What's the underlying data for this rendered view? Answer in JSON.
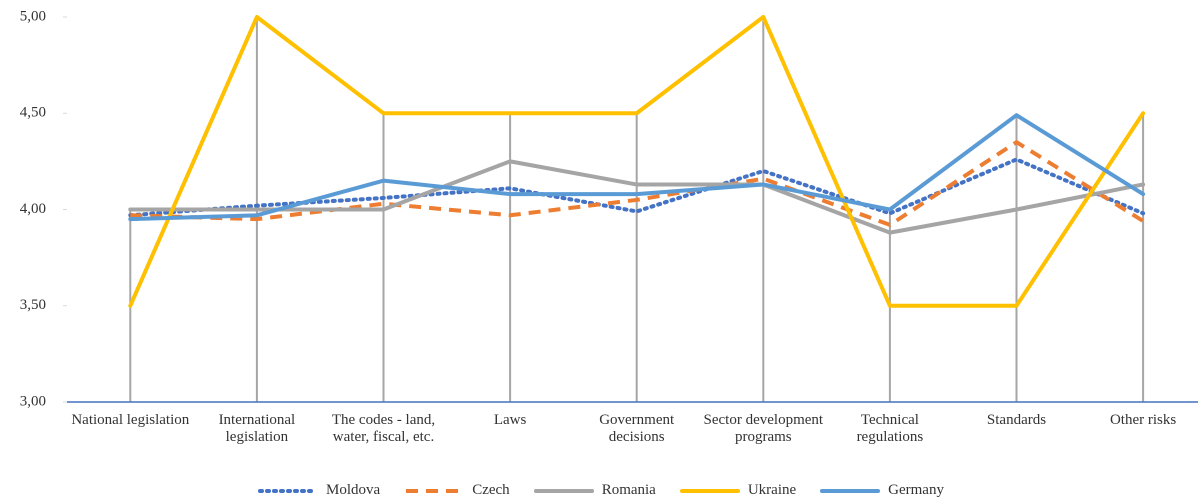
{
  "chart_data": {
    "type": "line",
    "categories": [
      "National legislation",
      "International legislation",
      "The codes - land, water, fiscal, etc.",
      "Laws",
      "Government decisions",
      "Sector development programs",
      "Technical regulations",
      "Standards",
      "Other risks"
    ],
    "series": [
      {
        "name": "Moldova",
        "color": "#4472c4",
        "dash": "dot",
        "values": [
          3.97,
          4.02,
          4.06,
          4.11,
          3.99,
          4.2,
          3.98,
          4.26,
          3.98
        ]
      },
      {
        "name": "Czech",
        "color": "#ed7d31",
        "dash": "dash",
        "values": [
          3.97,
          3.95,
          4.03,
          3.97,
          4.05,
          4.16,
          3.92,
          4.35,
          3.94
        ]
      },
      {
        "name": "Romania",
        "color": "#a5a5a5",
        "dash": "solid",
        "values": [
          4.0,
          4.0,
          4.0,
          4.25,
          4.13,
          4.13,
          3.88,
          4.0,
          4.13
        ]
      },
      {
        "name": "Ukraine",
        "color": "#ffc000",
        "dash": "solid",
        "values": [
          3.5,
          5.0,
          4.5,
          4.5,
          4.5,
          5.0,
          3.5,
          3.5,
          4.5
        ]
      },
      {
        "name": "Germany",
        "color": "#5b9bd5",
        "dash": "solid",
        "values": [
          3.95,
          3.97,
          4.15,
          4.08,
          4.08,
          4.13,
          4.0,
          4.49,
          4.08
        ]
      }
    ],
    "ylim": [
      3,
      5
    ],
    "yticks": [
      {
        "value": 3,
        "label": "3,00"
      },
      {
        "value": 3.5,
        "label": "3,50"
      },
      {
        "value": 4,
        "label": "4,00"
      },
      {
        "value": 4.5,
        "label": "4,50"
      },
      {
        "value": 5,
        "label": "5,00"
      }
    ],
    "drop_lines": true,
    "legend": "bottom"
  }
}
